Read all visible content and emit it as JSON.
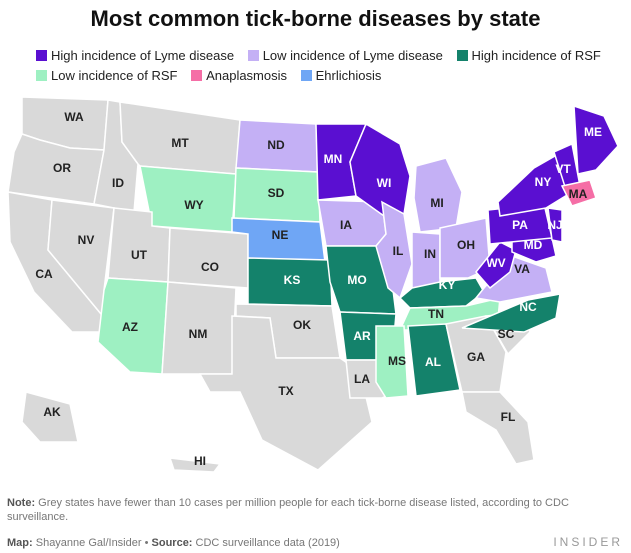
{
  "title": "Most common tick-borne diseases by state",
  "colors": {
    "high_lyme": "#5a0fd1",
    "low_lyme": "#c4b0f5",
    "high_rsf": "#14826b",
    "low_rsf": "#9ef0c2",
    "anaplasmosis": "#f56ea6",
    "ehrlichiosis": "#6fa6f5",
    "grey": "#d9d9d9"
  },
  "legend": [
    {
      "label": "High incidence of Lyme disease",
      "color": "#5a0fd1"
    },
    {
      "label": "Low incidence of Lyme disease",
      "color": "#c4b0f5"
    },
    {
      "label": "High incidence of RSF",
      "color": "#14826b"
    },
    {
      "label": "Low incidence of RSF",
      "color": "#9ef0c2"
    },
    {
      "label": "Anaplasmosis",
      "color": "#f56ea6"
    },
    {
      "label": "Ehrlichiosis",
      "color": "#6fa6f5"
    }
  ],
  "states": [
    {
      "abbr": "WA",
      "category": "grey"
    },
    {
      "abbr": "OR",
      "category": "grey"
    },
    {
      "abbr": "CA",
      "category": "grey"
    },
    {
      "abbr": "ID",
      "category": "grey"
    },
    {
      "abbr": "NV",
      "category": "grey"
    },
    {
      "abbr": "MT",
      "category": "grey"
    },
    {
      "abbr": "WY",
      "category": "low_rsf"
    },
    {
      "abbr": "UT",
      "category": "grey"
    },
    {
      "abbr": "AZ",
      "category": "low_rsf"
    },
    {
      "abbr": "CO",
      "category": "grey"
    },
    {
      "abbr": "NM",
      "category": "grey"
    },
    {
      "abbr": "ND",
      "category": "low_lyme"
    },
    {
      "abbr": "SD",
      "category": "low_rsf"
    },
    {
      "abbr": "NE",
      "category": "ehrlichiosis"
    },
    {
      "abbr": "KS",
      "category": "high_rsf"
    },
    {
      "abbr": "OK",
      "category": "grey"
    },
    {
      "abbr": "TX",
      "category": "grey"
    },
    {
      "abbr": "MN",
      "category": "high_lyme"
    },
    {
      "abbr": "IA",
      "category": "low_lyme"
    },
    {
      "abbr": "MO",
      "category": "high_rsf"
    },
    {
      "abbr": "AR",
      "category": "high_rsf"
    },
    {
      "abbr": "LA",
      "category": "grey"
    },
    {
      "abbr": "WI",
      "category": "high_lyme"
    },
    {
      "abbr": "IL",
      "category": "low_lyme"
    },
    {
      "abbr": "MI",
      "category": "low_lyme"
    },
    {
      "abbr": "IN",
      "category": "low_lyme"
    },
    {
      "abbr": "OH",
      "category": "low_lyme"
    },
    {
      "abbr": "KY",
      "category": "high_rsf"
    },
    {
      "abbr": "TN",
      "category": "low_rsf"
    },
    {
      "abbr": "MS",
      "category": "low_rsf"
    },
    {
      "abbr": "AL",
      "category": "high_rsf"
    },
    {
      "abbr": "GA",
      "category": "grey"
    },
    {
      "abbr": "FL",
      "category": "grey"
    },
    {
      "abbr": "SC",
      "category": "grey"
    },
    {
      "abbr": "NC",
      "category": "high_rsf"
    },
    {
      "abbr": "VA",
      "category": "low_lyme"
    },
    {
      "abbr": "WV",
      "category": "high_lyme"
    },
    {
      "abbr": "MD",
      "category": "high_lyme"
    },
    {
      "abbr": "PA",
      "category": "high_lyme"
    },
    {
      "abbr": "NJ",
      "category": "high_lyme"
    },
    {
      "abbr": "NY",
      "category": "high_lyme"
    },
    {
      "abbr": "VT",
      "category": "high_lyme"
    },
    {
      "abbr": "ME",
      "category": "high_lyme"
    },
    {
      "abbr": "MA",
      "category": "anaplasmosis"
    },
    {
      "abbr": "AK",
      "category": "grey"
    },
    {
      "abbr": "HI",
      "category": "grey"
    }
  ],
  "note": {
    "label": "Note:",
    "text": "Grey states have fewer than 10 cases per million people for each tick-borne disease listed, according to CDC surveillance."
  },
  "credit": {
    "map_label": "Map:",
    "map_text": "Shayanne Gal/Insider",
    "separator": "•",
    "source_label": "Source:",
    "source_text": "CDC surveillance data (2019)"
  },
  "brand": "INSIDER"
}
